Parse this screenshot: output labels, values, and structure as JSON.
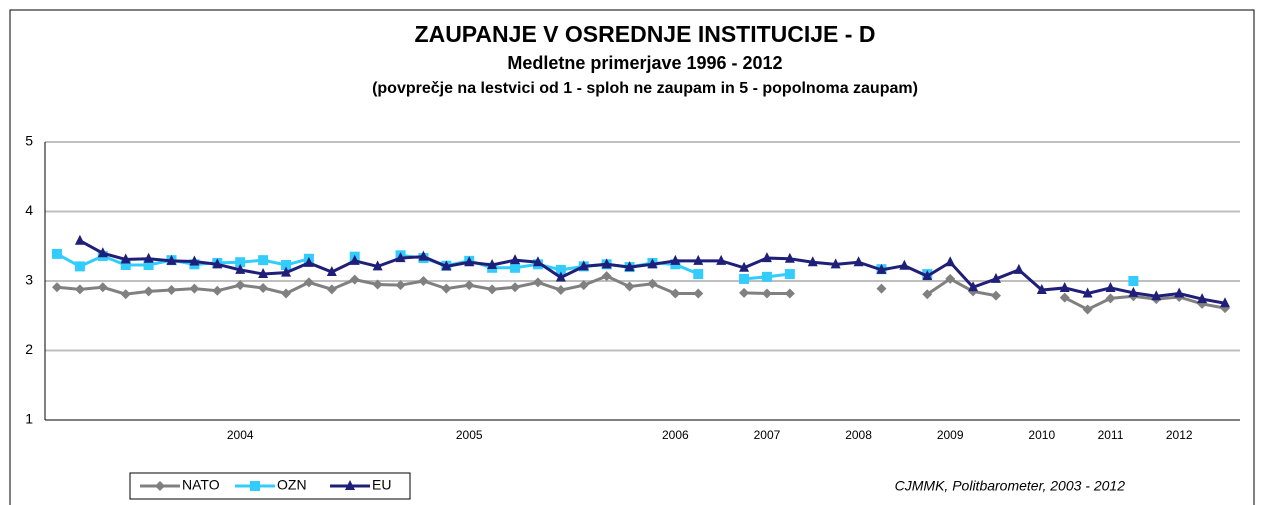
{
  "chart_data": {
    "type": "line",
    "title": "ZAUPANJE V OSREDNJE INSTITUCIJE - D",
    "subtitle": "Medletne primerjave 1996 - 2012",
    "note": "(povprečje na lestvici od 1 - sploh ne zaupam in 5 - popolnoma zaupam)",
    "source": "CJMMK, Politbarometer, 2003 - 2012",
    "categories": [
      null,
      null,
      null,
      null,
      null,
      null,
      null,
      null,
      "2004",
      null,
      null,
      null,
      null,
      null,
      null,
      null,
      null,
      null,
      "2005",
      null,
      null,
      null,
      null,
      null,
      null,
      null,
      null,
      "2006",
      null,
      null,
      null,
      "2007",
      null,
      null,
      null,
      "2008",
      null,
      null,
      null,
      "2009",
      null,
      null,
      null,
      "2010",
      null,
      null,
      "2011",
      null,
      null,
      "2012",
      null,
      null
    ],
    "series": [
      {
        "name": "NATO",
        "color": "#808080",
        "marker": "diamond",
        "values": [
          2.91,
          2.88,
          2.91,
          2.81,
          2.85,
          2.87,
          2.89,
          2.86,
          2.94,
          2.9,
          2.82,
          2.98,
          2.88,
          3.02,
          2.95,
          2.94,
          3.0,
          2.89,
          2.94,
          2.88,
          2.91,
          2.98,
          2.87,
          2.94,
          3.07,
          2.92,
          2.96,
          2.82,
          2.82,
          null,
          2.83,
          2.82,
          2.82,
          null,
          null,
          null,
          2.89,
          null,
          2.81,
          3.03,
          2.85,
          2.79,
          null,
          null,
          2.76,
          2.59,
          2.75,
          2.78,
          2.74,
          2.77,
          2.67,
          2.61
        ]
      },
      {
        "name": "OZN",
        "color": "#33ccff",
        "marker": "square",
        "values": [
          3.39,
          3.21,
          3.36,
          3.23,
          3.23,
          3.3,
          3.24,
          3.26,
          3.27,
          3.3,
          3.23,
          3.32,
          null,
          3.35,
          null,
          3.37,
          3.33,
          3.22,
          3.29,
          3.19,
          3.19,
          3.24,
          3.16,
          3.21,
          3.24,
          3.2,
          3.26,
          3.24,
          3.1,
          null,
          3.03,
          3.06,
          3.1,
          null,
          null,
          null,
          3.17,
          null,
          3.1,
          null,
          null,
          null,
          null,
          null,
          null,
          null,
          null,
          3.0,
          null,
          null,
          null,
          null
        ]
      },
      {
        "name": "EU",
        "color": "#1f1f7a",
        "marker": "triangle",
        "values": [
          null,
          3.58,
          3.4,
          3.31,
          3.32,
          3.29,
          3.28,
          3.24,
          3.16,
          3.1,
          3.12,
          3.26,
          3.13,
          3.29,
          3.21,
          3.33,
          3.35,
          3.21,
          3.27,
          3.23,
          3.3,
          3.27,
          3.05,
          3.21,
          3.24,
          3.2,
          3.24,
          3.29,
          3.29,
          3.29,
          3.19,
          3.33,
          3.32,
          3.27,
          3.24,
          3.27,
          3.16,
          3.22,
          3.07,
          3.27,
          2.91,
          3.03,
          3.16,
          2.87,
          2.9,
          2.82,
          2.9,
          2.83,
          2.78,
          2.82,
          2.74,
          2.68
        ]
      }
    ],
    "ylim": [
      1,
      5
    ],
    "yticks": [
      1,
      2,
      3,
      4,
      5
    ],
    "grid": true
  }
}
